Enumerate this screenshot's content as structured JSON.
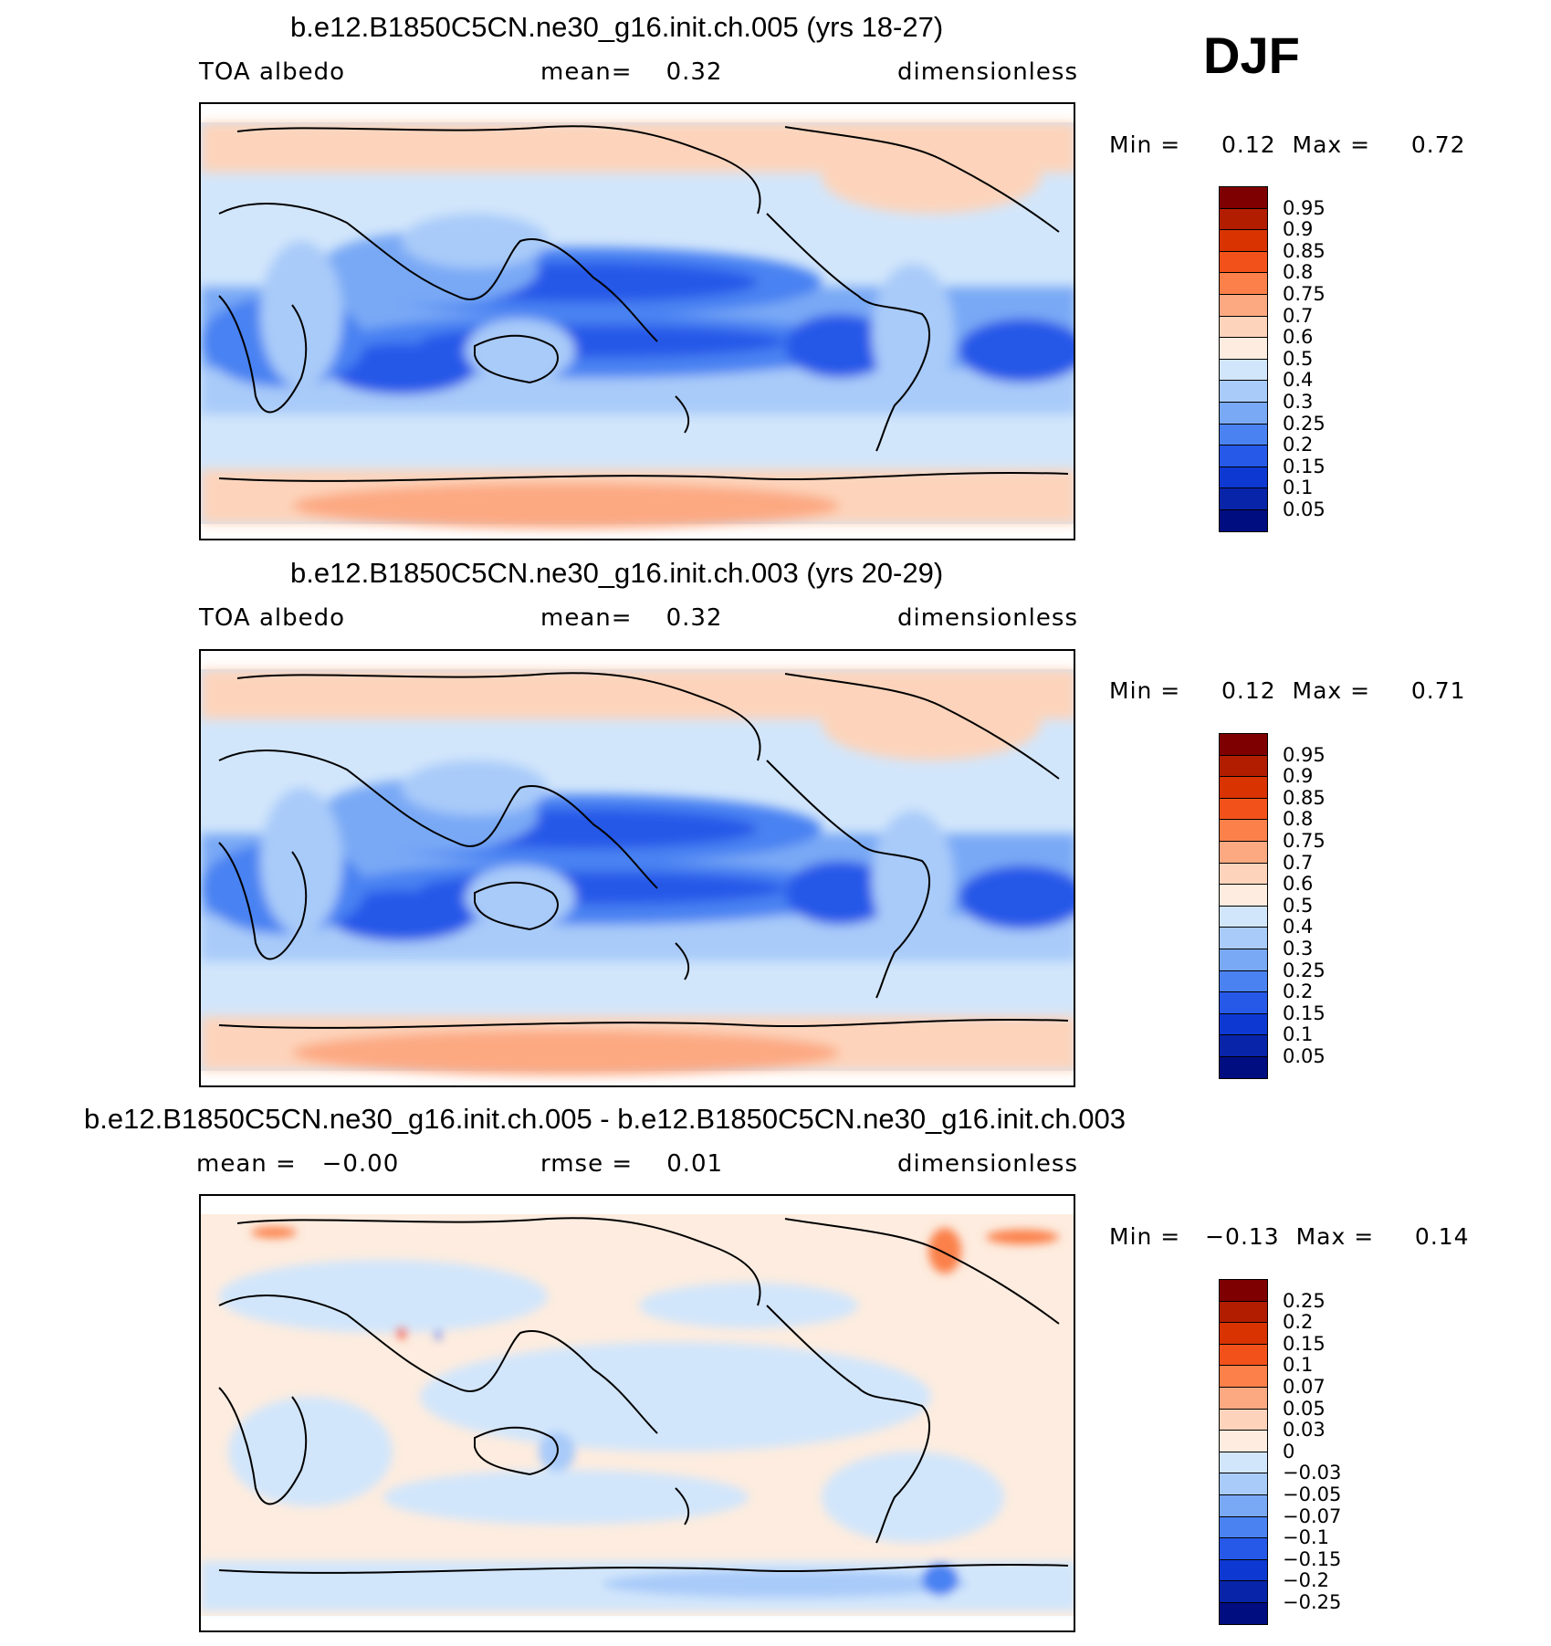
{
  "season": "DJF",
  "panels": [
    {
      "id": "p1",
      "title": "b.e12.B1850C5CN.ne30_g16.init.ch.005 (yrs 18-27)",
      "left_label": "TOA albedo",
      "center_label": "mean=    0.32",
      "right_label": "dimensionless",
      "minmax": "Min =     0.12  Max =     0.72",
      "colorbar": [
        "0.95",
        "0.9",
        "0.85",
        "0.8",
        "0.75",
        "0.7",
        "0.6",
        "0.5",
        "0.4",
        "0.3",
        "0.25",
        "0.2",
        "0.15",
        "0.1",
        "0.05"
      ],
      "colors": [
        "#7f0000",
        "#b21d00",
        "#d83300",
        "#f2521a",
        "#fb804a",
        "#fca982",
        "#fdd4bb",
        "#fdecdf",
        "#d2e6fb",
        "#a9cbf9",
        "#79a9f5",
        "#4a82f2",
        "#2659e8",
        "#0d38d2",
        "#0824a8",
        "#000d80"
      ]
    },
    {
      "id": "p2",
      "title": "b.e12.B1850C5CN.ne30_g16.init.ch.003 (yrs 20-29)",
      "left_label": "TOA albedo",
      "center_label": "mean=    0.32",
      "right_label": "dimensionless",
      "minmax": "Min =     0.12  Max =     0.71",
      "colorbar": [
        "0.95",
        "0.9",
        "0.85",
        "0.8",
        "0.75",
        "0.7",
        "0.6",
        "0.5",
        "0.4",
        "0.3",
        "0.25",
        "0.2",
        "0.15",
        "0.1",
        "0.05"
      ],
      "colors": [
        "#7f0000",
        "#b21d00",
        "#d83300",
        "#f2521a",
        "#fb804a",
        "#fca982",
        "#fdd4bb",
        "#fdecdf",
        "#d2e6fb",
        "#a9cbf9",
        "#79a9f5",
        "#4a82f2",
        "#2659e8",
        "#0d38d2",
        "#0824a8",
        "#000d80"
      ]
    },
    {
      "id": "p3",
      "title": "b.e12.B1850C5CN.ne30_g16.init.ch.005 - b.e12.B1850C5CN.ne30_g16.init.ch.003",
      "left_label": "mean =   −0.00",
      "center_label": "rmse =    0.01",
      "right_label": "dimensionless",
      "minmax": "Min =   −0.13  Max =     0.14",
      "colorbar": [
        "0.25",
        "0.2",
        "0.15",
        "0.1",
        "0.07",
        "0.05",
        "0.03",
        "0",
        "−0.03",
        "−0.05",
        "−0.07",
        "−0.1",
        "−0.15",
        "−0.2",
        "−0.25"
      ],
      "colors": [
        "#7f0000",
        "#b21d00",
        "#d83300",
        "#f2521a",
        "#fb804a",
        "#fca982",
        "#fdd4bb",
        "#fdecdf",
        "#d2e6fb",
        "#a9cbf9",
        "#79a9f5",
        "#4a82f2",
        "#2659e8",
        "#0d38d2",
        "#0824a8",
        "#000d80"
      ]
    }
  ]
}
